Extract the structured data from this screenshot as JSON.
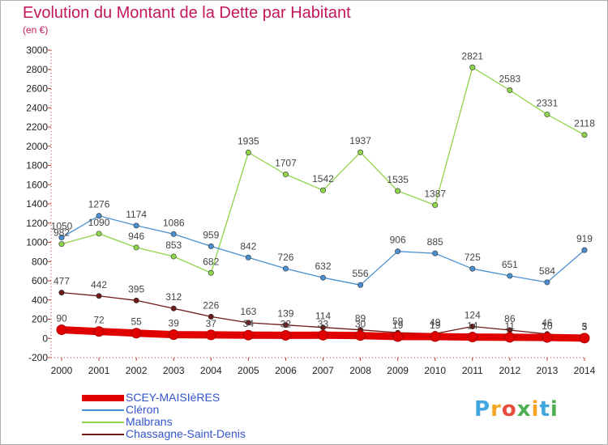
{
  "title": "Evolution du Montant de la Dette par Habitant",
  "subtitle": "(en €)",
  "colors": {
    "title": "#c2185b",
    "scey": "#e00000",
    "cleron": "#4a8fd0",
    "malbrans": "#8fd44a",
    "chassagne": "#6e1a1a",
    "legend_text": "#3355cc"
  },
  "chart_data": {
    "type": "line",
    "categories": [
      "2000",
      "2001",
      "2002",
      "2003",
      "2004",
      "2005",
      "2006",
      "2007",
      "2008",
      "2009",
      "2010",
      "2011",
      "2012",
      "2013",
      "2014"
    ],
    "ylim": [
      -200,
      3000
    ],
    "yticks": [
      -200,
      0,
      200,
      400,
      600,
      800,
      1000,
      1200,
      1400,
      1600,
      1800,
      2000,
      2200,
      2400,
      2600,
      2800,
      3000
    ],
    "grid": false,
    "legend_position": "bottom-left",
    "series": [
      {
        "name": "Malbrans",
        "color": "#8fd44a",
        "values": [
          982,
          1090,
          946,
          853,
          682,
          1935,
          1707,
          1542,
          1937,
          1535,
          1387,
          2821,
          2583,
          2331,
          2118
        ],
        "labels": [
          "982",
          "1090",
          "946",
          "853",
          "682",
          "1935",
          "1707",
          "1542",
          "1937",
          "1535",
          "1387",
          "2821",
          "2583",
          "2331",
          "2118"
        ]
      },
      {
        "name": "Cléron",
        "color": "#4a8fd0",
        "values": [
          1050,
          1276,
          1174,
          1086,
          959,
          842,
          726,
          632,
          556,
          906,
          885,
          725,
          651,
          584,
          919
        ],
        "labels": [
          "1050",
          "1276",
          "1174",
          "1086",
          "959",
          "842",
          "726",
          "632",
          "556",
          "906",
          "885",
          "725",
          "651",
          "584",
          "919"
        ]
      },
      {
        "name": "Chassagne-Saint-Denis",
        "color": "#6e1a1a",
        "values": [
          477,
          442,
          395,
          312,
          226,
          163,
          139,
          114,
          89,
          59,
          49,
          124,
          86,
          46,
          5
        ],
        "labels": [
          "477",
          "442",
          "395",
          "312",
          "226",
          "163",
          "139",
          "114",
          "89",
          "59",
          "49",
          "124",
          "86",
          "46",
          "5"
        ]
      },
      {
        "name": "SCEY-MAISIèRES",
        "color": "#e00000",
        "values": [
          90,
          72,
          55,
          39,
          37,
          34,
          32,
          33,
          30,
          19,
          19,
          14,
          11,
          10,
          3
        ],
        "labels": [
          "90",
          "72",
          "55",
          "39",
          "37",
          "34",
          "32",
          "33",
          "30",
          "19",
          "19",
          "14",
          "11",
          "10",
          "3"
        ]
      }
    ]
  },
  "legend": [
    {
      "label": "SCEY-MAISIèRES",
      "color": "#e00000"
    },
    {
      "label": "Cléron",
      "color": "#4a8fd0"
    },
    {
      "label": "Malbrans",
      "color": "#8fd44a"
    },
    {
      "label": "Chassagne-Saint-Denis",
      "color": "#6e1a1a"
    }
  ],
  "logo": {
    "letters": [
      "P",
      "r",
      "o",
      "x",
      "i",
      "t",
      "i"
    ],
    "colors": [
      "#3fa6e0",
      "#f5a623",
      "#e84c3d",
      "#4caf50",
      "#f5a623",
      "#3fa6e0",
      "#4caf50"
    ]
  }
}
